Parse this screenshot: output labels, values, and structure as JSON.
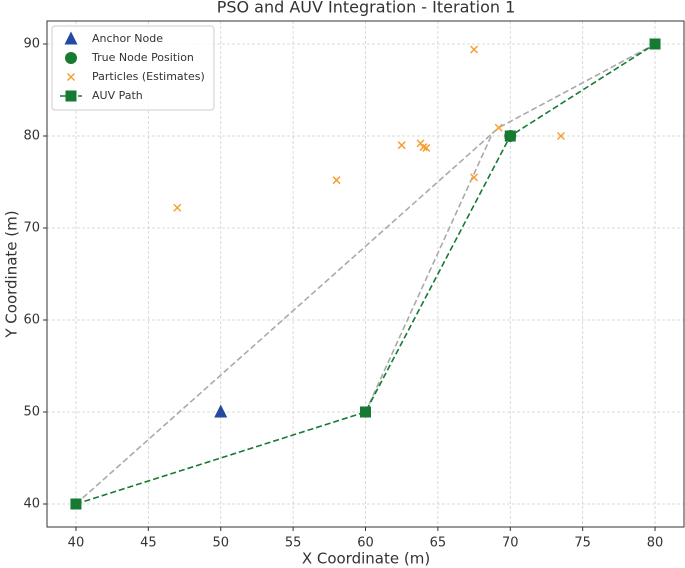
{
  "chart_data": {
    "type": "scatter",
    "title": "PSO and AUV Integration - Iteration 1",
    "x_label": "X Coordinate (m)",
    "y_label": "Y Coordinate (m)",
    "xlim": [
      38,
      82
    ],
    "ylim": [
      37.5,
      92.5
    ],
    "xticks": [
      40,
      45,
      50,
      55,
      60,
      65,
      70,
      75,
      80
    ],
    "yticks": [
      40,
      50,
      60,
      70,
      80,
      90
    ],
    "grid": true,
    "legend": "upper left",
    "series": [
      {
        "color": "#aaaaaa",
        "marker": "none",
        "linestyle": "dashed",
        "x": [
          40,
          69.2,
          80,
          null,
          60,
          68.8
        ],
        "y": [
          40,
          80.9,
          90,
          null,
          50,
          80.4
        ]
      },
      {
        "name": "Anchor Node",
        "color": "#2449a0",
        "marker": "triangle",
        "linestyle": "none",
        "x": [
          50
        ],
        "y": [
          50
        ]
      },
      {
        "name": "True Node Position",
        "color": "#167a30",
        "marker": "circle",
        "linestyle": "none",
        "x": [
          70
        ],
        "y": [
          80
        ]
      },
      {
        "name": "Particles (Estimates)",
        "color": "#f5a030",
        "marker": "x",
        "linestyle": "none",
        "x": [
          47,
          58,
          62.5,
          63.8,
          64,
          64.2,
          67.5,
          67.5,
          69.2,
          73.5
        ],
        "y": [
          72.2,
          75.2,
          79,
          79.2,
          78.8,
          78.7,
          89.4,
          75.5,
          80.9,
          80
        ]
      },
      {
        "name": "AUV Path",
        "color": "#167a33",
        "marker": "square",
        "linestyle": "dashed",
        "x": [
          40,
          60,
          70,
          80
        ],
        "y": [
          40,
          50,
          80,
          90
        ]
      }
    ]
  }
}
